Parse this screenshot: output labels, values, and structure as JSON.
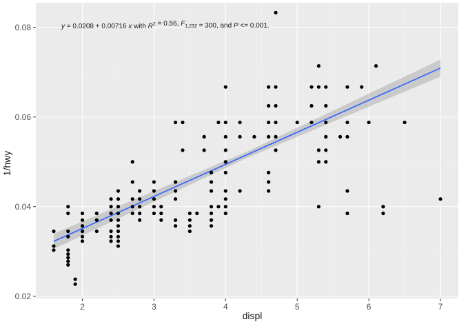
{
  "chart_data": {
    "type": "scatter",
    "xlabel": "displ",
    "ylabel": "1/hwy",
    "xlim": [
      1.35,
      7.25
    ],
    "ylim": [
      0.0195,
      0.0855
    ],
    "x_ticks": [
      2,
      3,
      4,
      5,
      6,
      7
    ],
    "x_tick_labels": [
      "2",
      "3",
      "4",
      "5",
      "6",
      "7"
    ],
    "y_ticks": [
      0.02,
      0.04,
      0.06,
      0.08
    ],
    "y_tick_labels": [
      "0.02",
      "0.04",
      "0.06",
      "0.08"
    ],
    "grid": true,
    "legend": "none",
    "annotation": {
      "segments": [
        {
          "text": "y",
          "style": "italic"
        },
        {
          "text": " = 0.0208 + 0.00716 ",
          "style": "normal"
        },
        {
          "text": "x",
          "style": "italic"
        },
        {
          "text": " with ",
          "style": "normal"
        },
        {
          "text": "R",
          "style": "italic"
        },
        {
          "text": "2",
          "style": "sup"
        },
        {
          "text": " = 0.56, ",
          "style": "normal"
        },
        {
          "text": "F",
          "style": "italic"
        },
        {
          "text": "1,232",
          "style": "sub"
        },
        {
          "text": " = 300, and ",
          "style": "normal"
        },
        {
          "text": "P",
          "style": "italic"
        },
        {
          "text": " <= 0.001.",
          "style": "normal"
        }
      ]
    },
    "fit": {
      "intercept": 0.0208,
      "slope": 0.00716,
      "band_half_width": [
        [
          1.6,
          0.0017
        ],
        [
          4.3,
          0.0007
        ],
        [
          7.0,
          0.0019
        ]
      ]
    },
    "points": [
      [
        1.6,
        0.0303
      ],
      [
        1.6,
        0.0312
      ],
      [
        1.6,
        0.0345
      ],
      [
        1.8,
        0.027
      ],
      [
        1.8,
        0.0278
      ],
      [
        1.8,
        0.0286
      ],
      [
        1.8,
        0.0294
      ],
      [
        1.8,
        0.0303
      ],
      [
        1.8,
        0.0333
      ],
      [
        1.8,
        0.0345
      ],
      [
        1.8,
        0.0385
      ],
      [
        1.8,
        0.04
      ],
      [
        1.9,
        0.0227
      ],
      [
        1.9,
        0.0238
      ],
      [
        2.0,
        0.0323
      ],
      [
        2.0,
        0.0333
      ],
      [
        2.0,
        0.0345
      ],
      [
        2.0,
        0.0357
      ],
      [
        2.0,
        0.037
      ],
      [
        2.0,
        0.0385
      ],
      [
        2.2,
        0.0345
      ],
      [
        2.2,
        0.037
      ],
      [
        2.2,
        0.0385
      ],
      [
        2.4,
        0.0323
      ],
      [
        2.4,
        0.0333
      ],
      [
        2.4,
        0.0345
      ],
      [
        2.4,
        0.037
      ],
      [
        2.4,
        0.0385
      ],
      [
        2.4,
        0.04
      ],
      [
        2.4,
        0.0417
      ],
      [
        2.5,
        0.0312
      ],
      [
        2.5,
        0.0323
      ],
      [
        2.5,
        0.0333
      ],
      [
        2.5,
        0.0345
      ],
      [
        2.5,
        0.0357
      ],
      [
        2.5,
        0.037
      ],
      [
        2.5,
        0.0385
      ],
      [
        2.5,
        0.04
      ],
      [
        2.5,
        0.0417
      ],
      [
        2.5,
        0.0435
      ],
      [
        2.7,
        0.0385
      ],
      [
        2.7,
        0.04
      ],
      [
        2.7,
        0.0417
      ],
      [
        2.7,
        0.0455
      ],
      [
        2.7,
        0.05
      ],
      [
        2.8,
        0.037
      ],
      [
        2.8,
        0.0385
      ],
      [
        2.8,
        0.04
      ],
      [
        2.8,
        0.0417
      ],
      [
        2.8,
        0.0435
      ],
      [
        3.0,
        0.0385
      ],
      [
        3.0,
        0.04
      ],
      [
        3.0,
        0.0417
      ],
      [
        3.0,
        0.0435
      ],
      [
        3.0,
        0.0455
      ],
      [
        3.1,
        0.037
      ],
      [
        3.1,
        0.0385
      ],
      [
        3.1,
        0.04
      ],
      [
        3.3,
        0.0357
      ],
      [
        3.3,
        0.037
      ],
      [
        3.3,
        0.0417
      ],
      [
        3.3,
        0.0435
      ],
      [
        3.3,
        0.0455
      ],
      [
        3.3,
        0.0588
      ],
      [
        3.4,
        0.0526
      ],
      [
        3.4,
        0.0588
      ],
      [
        3.5,
        0.0345
      ],
      [
        3.5,
        0.0357
      ],
      [
        3.5,
        0.037
      ],
      [
        3.5,
        0.0385
      ],
      [
        3.6,
        0.0385
      ],
      [
        3.7,
        0.0526
      ],
      [
        3.7,
        0.0556
      ],
      [
        3.8,
        0.0357
      ],
      [
        3.8,
        0.037
      ],
      [
        3.8,
        0.0385
      ],
      [
        3.8,
        0.04
      ],
      [
        3.8,
        0.0435
      ],
      [
        3.8,
        0.0455
      ],
      [
        3.8,
        0.0476
      ],
      [
        3.9,
        0.04
      ],
      [
        3.9,
        0.0588
      ],
      [
        4.0,
        0.0385
      ],
      [
        4.0,
        0.04
      ],
      [
        4.0,
        0.0417
      ],
      [
        4.0,
        0.0435
      ],
      [
        4.0,
        0.0476
      ],
      [
        4.0,
        0.05
      ],
      [
        4.0,
        0.0526
      ],
      [
        4.0,
        0.0556
      ],
      [
        4.0,
        0.0588
      ],
      [
        4.0,
        0.0667
      ],
      [
        4.2,
        0.0435
      ],
      [
        4.2,
        0.0556
      ],
      [
        4.2,
        0.0588
      ],
      [
        4.4,
        0.0556
      ],
      [
        4.6,
        0.0435
      ],
      [
        4.6,
        0.0455
      ],
      [
        4.6,
        0.0476
      ],
      [
        4.6,
        0.0556
      ],
      [
        4.6,
        0.0588
      ],
      [
        4.6,
        0.0625
      ],
      [
        4.6,
        0.0667
      ],
      [
        4.7,
        0.0526
      ],
      [
        4.7,
        0.0556
      ],
      [
        4.7,
        0.0588
      ],
      [
        4.7,
        0.0625
      ],
      [
        4.7,
        0.0667
      ],
      [
        4.7,
        0.0833
      ],
      [
        5.0,
        0.0588
      ],
      [
        5.2,
        0.0588
      ],
      [
        5.2,
        0.0625
      ],
      [
        5.2,
        0.0667
      ],
      [
        5.3,
        0.04
      ],
      [
        5.3,
        0.05
      ],
      [
        5.3,
        0.0526
      ],
      [
        5.3,
        0.0667
      ],
      [
        5.3,
        0.0714
      ],
      [
        5.4,
        0.05
      ],
      [
        5.4,
        0.0526
      ],
      [
        5.4,
        0.0556
      ],
      [
        5.4,
        0.0588
      ],
      [
        5.4,
        0.0625
      ],
      [
        5.4,
        0.0667
      ],
      [
        5.6,
        0.0556
      ],
      [
        5.7,
        0.0385
      ],
      [
        5.7,
        0.0435
      ],
      [
        5.7,
        0.0556
      ],
      [
        5.7,
        0.0588
      ],
      [
        5.7,
        0.0667
      ],
      [
        5.9,
        0.0667
      ],
      [
        6.0,
        0.0588
      ],
      [
        6.1,
        0.0714
      ],
      [
        6.2,
        0.0385
      ],
      [
        6.2,
        0.04
      ],
      [
        6.5,
        0.0588
      ],
      [
        7.0,
        0.0417
      ]
    ]
  },
  "colors": {
    "panel": "#ebebeb",
    "grid_major": "#ffffff",
    "grid_minor": "#f5f5f5",
    "point": "#000000",
    "fit_line": "#3366ff",
    "band": "#999999"
  }
}
